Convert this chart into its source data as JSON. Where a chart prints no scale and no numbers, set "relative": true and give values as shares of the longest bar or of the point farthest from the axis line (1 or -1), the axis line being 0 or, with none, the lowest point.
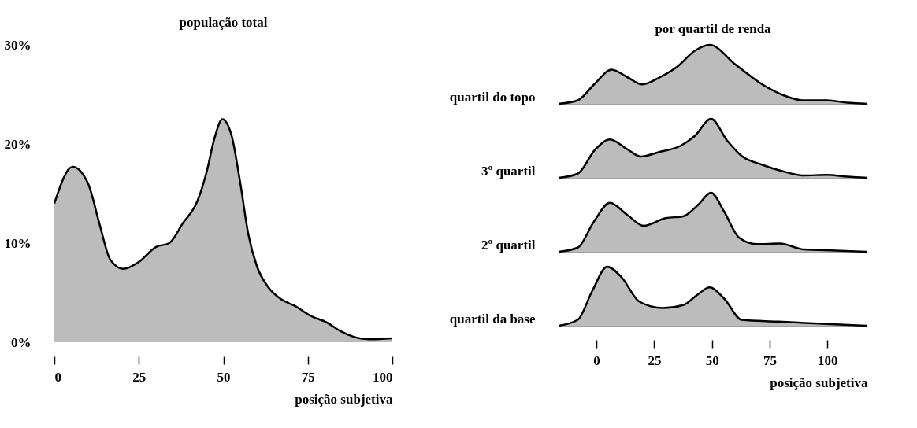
{
  "chart_data": [
    {
      "type": "area",
      "title": "população total",
      "xlabel": "posição subjetiva",
      "color": "#a0a0a0",
      "x": [
        0,
        5.4,
        10,
        13.3,
        16.6,
        20.4,
        25,
        30,
        34,
        38,
        42.4,
        45,
        47.4,
        49.7,
        52.4,
        54.9,
        57.4,
        59.9,
        63.2,
        67.3,
        71.5,
        75.6,
        80.6,
        84.8,
        88.1,
        93.1,
        100
      ],
      "values": [
        14.0,
        17.7,
        16.0,
        12.0,
        8.3,
        7.4,
        8.1,
        9.6,
        10.0,
        12.0,
        14.3,
        17.1,
        20.6,
        22.5,
        20.9,
        16.3,
        10.9,
        7.7,
        5.6,
        4.3,
        3.6,
        2.7,
        2.0,
        1.1,
        0.6,
        0.3,
        0.4
      ],
      "xlim": [
        0,
        100
      ],
      "xticks": [
        0,
        25,
        50,
        75,
        100
      ],
      "ylim": [
        0,
        30
      ],
      "yticks": [
        {
          "value": 0,
          "label": "0%"
        },
        {
          "value": 10,
          "label": "10%"
        },
        {
          "value": 20,
          "label": "20%"
        },
        {
          "value": 30,
          "label": "30%"
        }
      ]
    },
    {
      "type": "area",
      "title": "por quartil de renda",
      "ylabel": "quartil do topo",
      "relative": true,
      "color": "#a0a0a0",
      "tick_labels": false,
      "xlim": [
        -16.4,
        117.3
      ],
      "xticks": [
        0,
        25,
        50,
        75,
        100
      ],
      "x": [
        -16.4,
        -8.1,
        -0.5,
        6.5,
        13.5,
        19.8,
        27.4,
        35,
        42.6,
        49,
        60.4,
        71.8,
        80.7,
        89.6,
        99.7,
        108.6,
        117.3
      ],
      "values": [
        0,
        0.06,
        0.35,
        0.58,
        0.45,
        0.33,
        0.45,
        0.63,
        0.9,
        1,
        0.66,
        0.33,
        0.15,
        0.06,
        0.06,
        0.02,
        0
      ]
    },
    {
      "type": "area",
      "ylabel": "3º quartil",
      "relative": true,
      "color": "#a0a0a0",
      "tick_labels": false,
      "xlim": [
        -16.4,
        117.3
      ],
      "xticks": [
        0,
        25,
        50,
        75,
        100
      ],
      "x": [
        -16.4,
        -8.1,
        -0.5,
        5.8,
        13.5,
        19.2,
        27.4,
        36.3,
        42.6,
        49.6,
        56.6,
        62.9,
        71.8,
        80.7,
        89.6,
        99.7,
        108.6,
        117.3
      ],
      "values": [
        0,
        0.07,
        0.48,
        0.65,
        0.48,
        0.36,
        0.44,
        0.54,
        0.71,
        1,
        0.63,
        0.37,
        0.22,
        0.11,
        0.04,
        0.05,
        0.02,
        0
      ]
    },
    {
      "type": "area",
      "ylabel": "2º quartil",
      "relative": true,
      "color": "#a0a0a0",
      "tick_labels": false,
      "xlim": [
        -16.4,
        117.3
      ],
      "xticks": [
        0,
        25,
        50,
        75,
        100
      ],
      "x": [
        -16.4,
        -8.1,
        -1.1,
        5.8,
        13.5,
        20.4,
        30,
        37.6,
        43.9,
        49.6,
        55.3,
        61.7,
        69.3,
        79.4,
        89.6,
        103.6,
        117.3
      ],
      "values": [
        0,
        0.07,
        0.51,
        0.83,
        0.62,
        0.44,
        0.57,
        0.6,
        0.79,
        1,
        0.68,
        0.24,
        0.13,
        0.14,
        0.04,
        0.02,
        0
      ]
    },
    {
      "type": "area",
      "ylabel": "quartil da base",
      "xlabel": "posição subjetiva",
      "relative": true,
      "color": "#a0a0a0",
      "tick_labels": "x",
      "xlim": [
        -16.4,
        117.3
      ],
      "xticks": [
        0,
        25,
        50,
        75,
        100
      ],
      "x": [
        -16.4,
        -8.1,
        -1.8,
        4.6,
        10.9,
        18.5,
        28.7,
        37.6,
        43.9,
        49,
        55.3,
        62.9,
        78.2,
        99.7,
        117.3
      ],
      "values": [
        0,
        0.1,
        0.59,
        1,
        0.82,
        0.41,
        0.3,
        0.35,
        0.53,
        0.65,
        0.46,
        0.1,
        0.07,
        0.03,
        0
      ]
    }
  ]
}
